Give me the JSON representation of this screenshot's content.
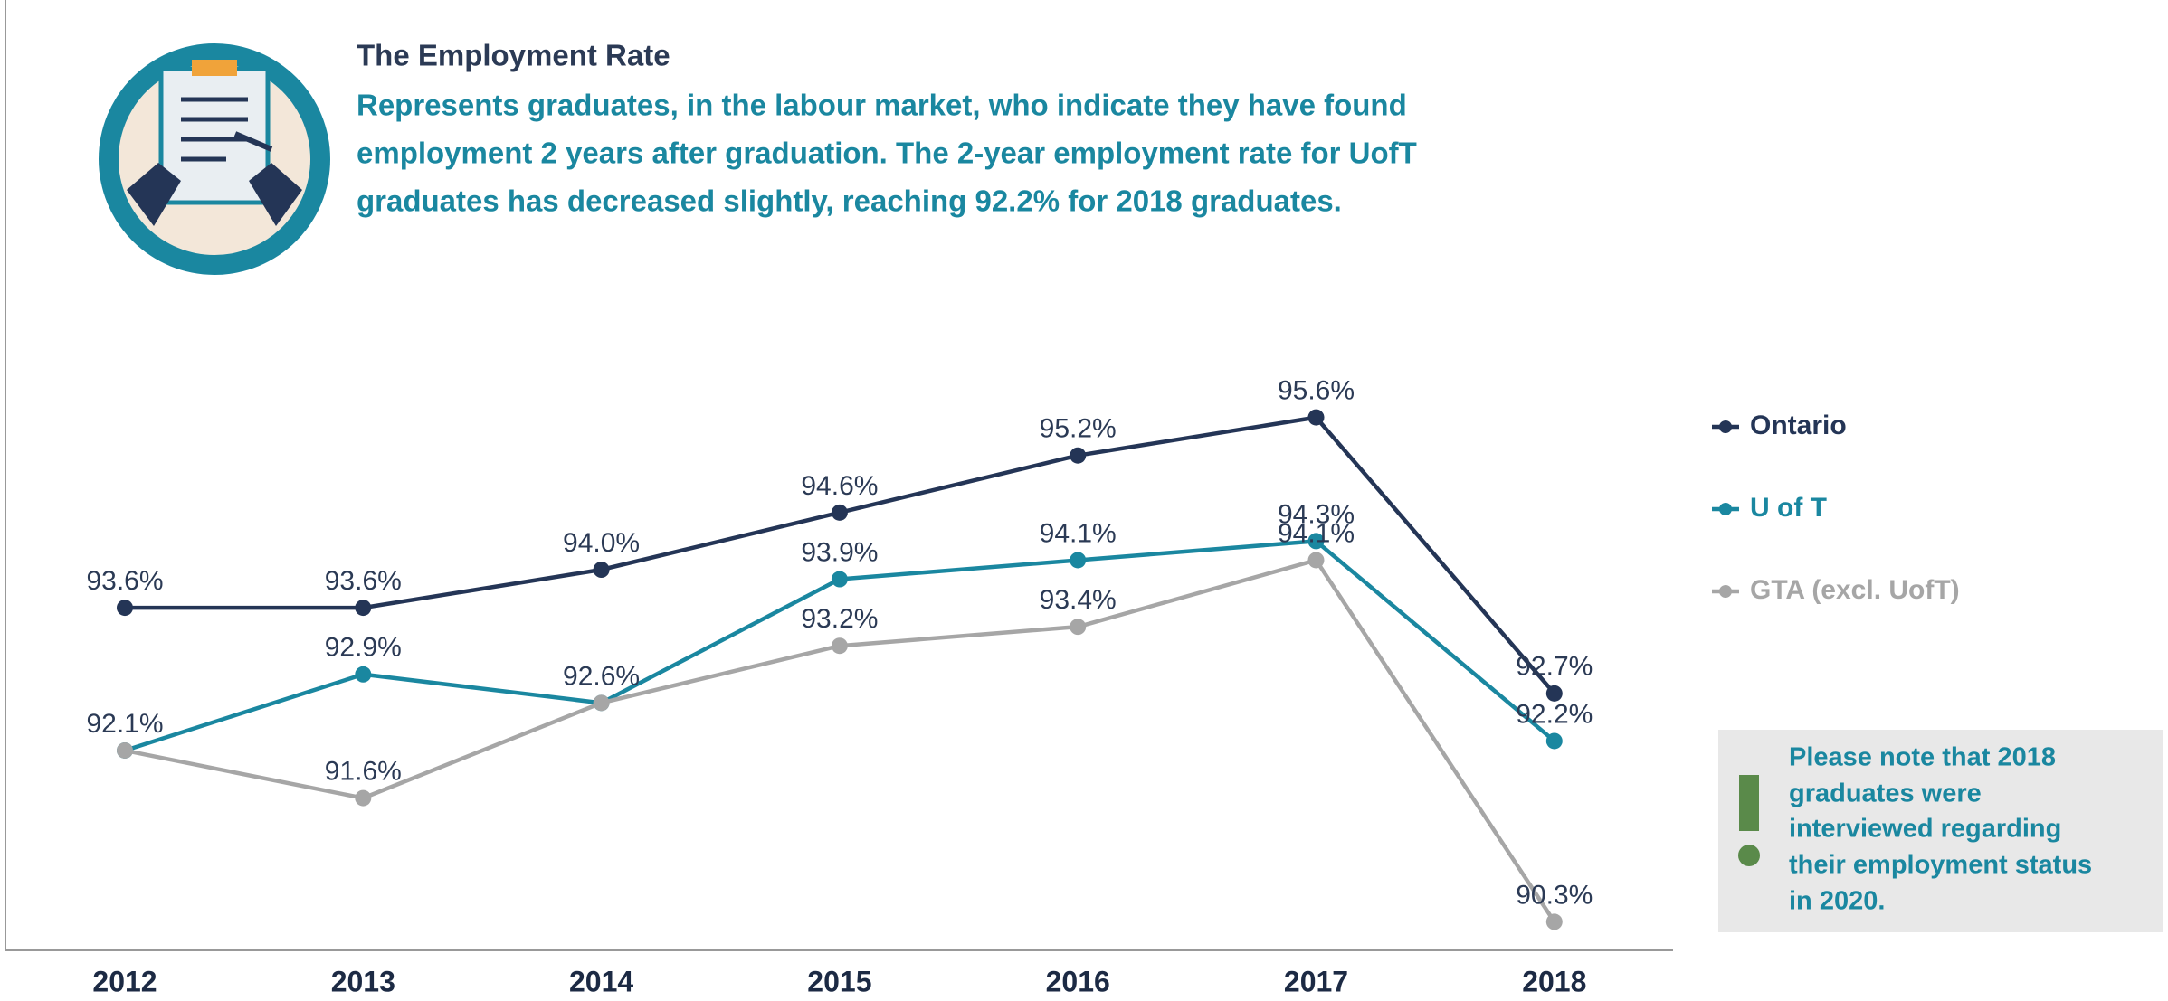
{
  "header": {
    "title": "The Employment Rate",
    "description": [
      "Represents graduates, in the labour market, who indicate they have found",
      "employment 2 years after graduation. The 2-year employment rate for UofT",
      "graduates has decreased slightly, reaching 92.2% for 2018 graduates."
    ]
  },
  "chart_data": {
    "type": "line",
    "categories": [
      "2012",
      "2013",
      "2014",
      "2015",
      "2016",
      "2017",
      "2018"
    ],
    "ylim": [
      90,
      98
    ],
    "series": [
      {
        "name": "Ontario",
        "color": "#243556",
        "values": [
          93.6,
          93.6,
          94.0,
          94.6,
          95.2,
          95.6,
          92.7
        ],
        "value_labels": [
          "93.6%",
          "93.6%",
          "94.0%",
          "94.6%",
          "95.2%",
          "95.6%",
          "92.7%"
        ]
      },
      {
        "name": "U of T",
        "color": "#1a87a0",
        "values": [
          92.1,
          92.9,
          92.6,
          93.9,
          94.1,
          94.3,
          92.2
        ],
        "value_labels": [
          "92.1%",
          "92.9%",
          "92.6%",
          "93.9%",
          "94.1%",
          "94.3%",
          "92.2%"
        ]
      },
      {
        "name": "GTA (excl. UofT)",
        "color": "#a6a6a6",
        "values": [
          92.1,
          91.6,
          92.6,
          93.2,
          93.4,
          94.1,
          90.3
        ],
        "value_labels": [
          null,
          "91.6%",
          null,
          "93.2%",
          "93.4%",
          "94.1%",
          "90.3%"
        ]
      }
    ]
  },
  "note": {
    "lines": [
      "Please note that 2018",
      "graduates were",
      "interviewed regarding",
      "their employment status",
      "in 2020."
    ]
  }
}
